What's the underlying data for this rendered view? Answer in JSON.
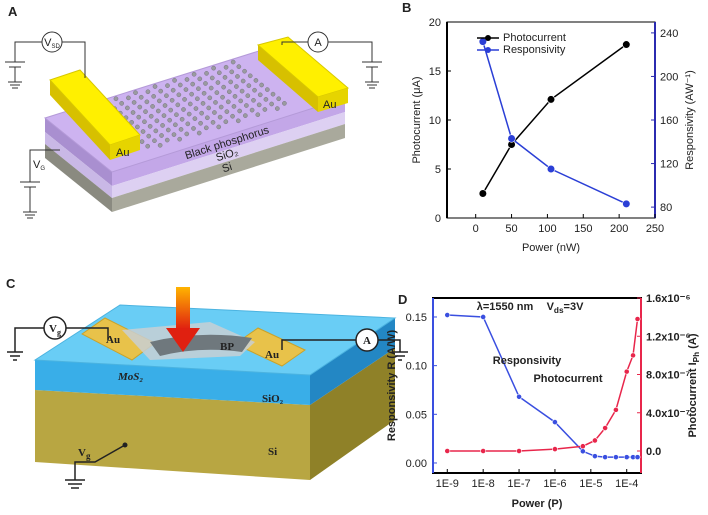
{
  "panel_labels": [
    "A",
    "B",
    "C",
    "D"
  ],
  "diagram_a": {
    "vsd": {
      "main": "V",
      "sub": "SD"
    },
    "ammeter": "A",
    "au_left": "Au",
    "au_right": "Au",
    "layer_bp": "Black phosphorus",
    "layer_sio2": "SiO₂",
    "layer_si": "Si",
    "vg": {
      "main": "V",
      "sub": "G"
    }
  },
  "diagram_c": {
    "vg_source": {
      "main": "V",
      "sub": "g"
    },
    "ammeter": "A",
    "au_left": "Au",
    "au_right": "Au",
    "bp": "BP",
    "mos2": "MoS₂",
    "sio2": "SiO₂",
    "si": "Si",
    "vg_gate": {
      "main": "V",
      "sub": "g"
    }
  },
  "chart_data": [
    {
      "type": "line",
      "x": [
        10,
        50,
        105,
        210
      ],
      "xlabel": "Power (nW)",
      "ylabel": "Photocurrent (μA)",
      "y2label": "Responsivity (AW⁻¹)",
      "xlim": [
        -40,
        250
      ],
      "xticks": [
        0,
        50,
        100,
        150,
        200,
        250
      ],
      "ylim": [
        0,
        20
      ],
      "yticks": [
        0,
        5,
        10,
        15,
        20
      ],
      "y2lim": [
        70,
        250
      ],
      "y2ticks": [
        80,
        120,
        160,
        200,
        240
      ],
      "ycolor": "#000000",
      "y2color": "#2b2bb0",
      "legend": "upper left",
      "series": [
        {
          "name": "Photocurrent",
          "color": "#000000",
          "values": [
            2.5,
            7.5,
            12.1,
            17.7
          ]
        },
        {
          "name": "Responsivity",
          "color": "#2b3fd6",
          "axis": "y2",
          "values": [
            232,
            143,
            115,
            83
          ]
        }
      ]
    },
    {
      "type": "line",
      "xscale": "log",
      "x": [
        1e-09,
        1e-08,
        1e-07,
        1e-06,
        6e-06,
        1.3e-05,
        2.5e-05,
        5e-05,
        0.0001,
        0.00015,
        0.0002
      ],
      "xlabel": "Power (P)",
      "ylabel": "Responsivity R (A/W)",
      "y2label": {
        "main": "Photocurrent I",
        "sub": "Ph",
        "rest": " (A)"
      },
      "xlim": [
        4e-10,
        0.00025
      ],
      "xticks": [
        {
          "value": 1e-09,
          "label": "1E-9"
        },
        {
          "value": 1e-08,
          "label": "1E-8"
        },
        {
          "value": 1e-07,
          "label": "1E-7"
        },
        {
          "value": 1e-06,
          "label": "1E-6"
        },
        {
          "value": 1e-05,
          "label": "1E-5"
        },
        {
          "value": 0.0001,
          "label": "1E-4"
        }
      ],
      "ylim": [
        -0.0103,
        0.1695
      ],
      "yticks": [
        {
          "value": 0,
          "label": "0.00"
        },
        {
          "value": 0.05,
          "label": "0.05"
        },
        {
          "value": 0.1,
          "label": "0.10"
        },
        {
          "value": 0.15,
          "label": "0.15"
        }
      ],
      "y2lim": [
        -2.3e-07,
        1.6e-06
      ],
      "y2ticks": [
        {
          "value": 0,
          "label": "0.0"
        },
        {
          "value": 4e-07,
          "label": "4.0x10⁻⁷"
        },
        {
          "value": 8e-07,
          "label": "8.0x10⁻⁷"
        },
        {
          "value": 1.2e-06,
          "label": "1.2x10⁻⁶"
        },
        {
          "value": 1.6e-06,
          "label": "1.6x10⁻⁶"
        }
      ],
      "ycolor": "#3a4fe0",
      "y2color": "#e8264b",
      "legend": "inline",
      "annotations": [
        "λ=1550 nm",
        {
          "main": "V",
          "sub": "ds",
          "rest": "=3V"
        }
      ],
      "series": [
        {
          "name": "Responsivity",
          "color": "#3a4fe0",
          "values": [
            0.152,
            0.15,
            0.068,
            0.042,
            0.012,
            0.007,
            0.006,
            0.006,
            0.006,
            0.006,
            0.006
          ]
        },
        {
          "name": "Photocurrent",
          "color": "#e8264b",
          "axis": "y2",
          "values": [
            0,
            0,
            0,
            2e-08,
            5e-08,
            1.1e-07,
            2.4e-07,
            4.3e-07,
            8.3e-07,
            1e-06,
            1.38e-06
          ]
        }
      ]
    }
  ]
}
